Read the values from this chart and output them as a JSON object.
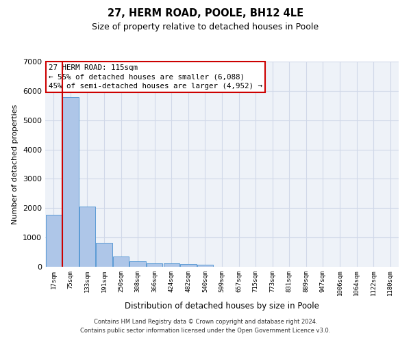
{
  "title": "27, HERM ROAD, POOLE, BH12 4LE",
  "subtitle": "Size of property relative to detached houses in Poole",
  "xlabel": "Distribution of detached houses by size in Poole",
  "ylabel": "Number of detached properties",
  "footer_line1": "Contains HM Land Registry data © Crown copyright and database right 2024.",
  "footer_line2": "Contains public sector information licensed under the Open Government Licence v3.0.",
  "bar_labels": [
    "17sqm",
    "75sqm",
    "133sqm",
    "191sqm",
    "250sqm",
    "308sqm",
    "366sqm",
    "424sqm",
    "482sqm",
    "540sqm",
    "599sqm",
    "657sqm",
    "715sqm",
    "773sqm",
    "831sqm",
    "889sqm",
    "947sqm",
    "1006sqm",
    "1064sqm",
    "1122sqm",
    "1180sqm"
  ],
  "bar_values": [
    1780,
    5780,
    2060,
    820,
    340,
    190,
    120,
    110,
    100,
    70,
    0,
    0,
    0,
    0,
    0,
    0,
    0,
    0,
    0,
    0,
    0
  ],
  "bar_color": "#aec6e8",
  "bar_edge_color": "#5b9bd5",
  "highlight_bar_index": 1,
  "highlight_line_color": "#cc0000",
  "ylim": [
    0,
    7000
  ],
  "yticks": [
    0,
    1000,
    2000,
    3000,
    4000,
    5000,
    6000,
    7000
  ],
  "annotation_text": "27 HERM ROAD: 115sqm\n← 55% of detached houses are smaller (6,088)\n45% of semi-detached houses are larger (4,952) →",
  "annotation_box_color": "#ffffff",
  "annotation_box_edge": "#cc0000",
  "grid_color": "#d0d8e8",
  "bg_color": "#eef2f8"
}
